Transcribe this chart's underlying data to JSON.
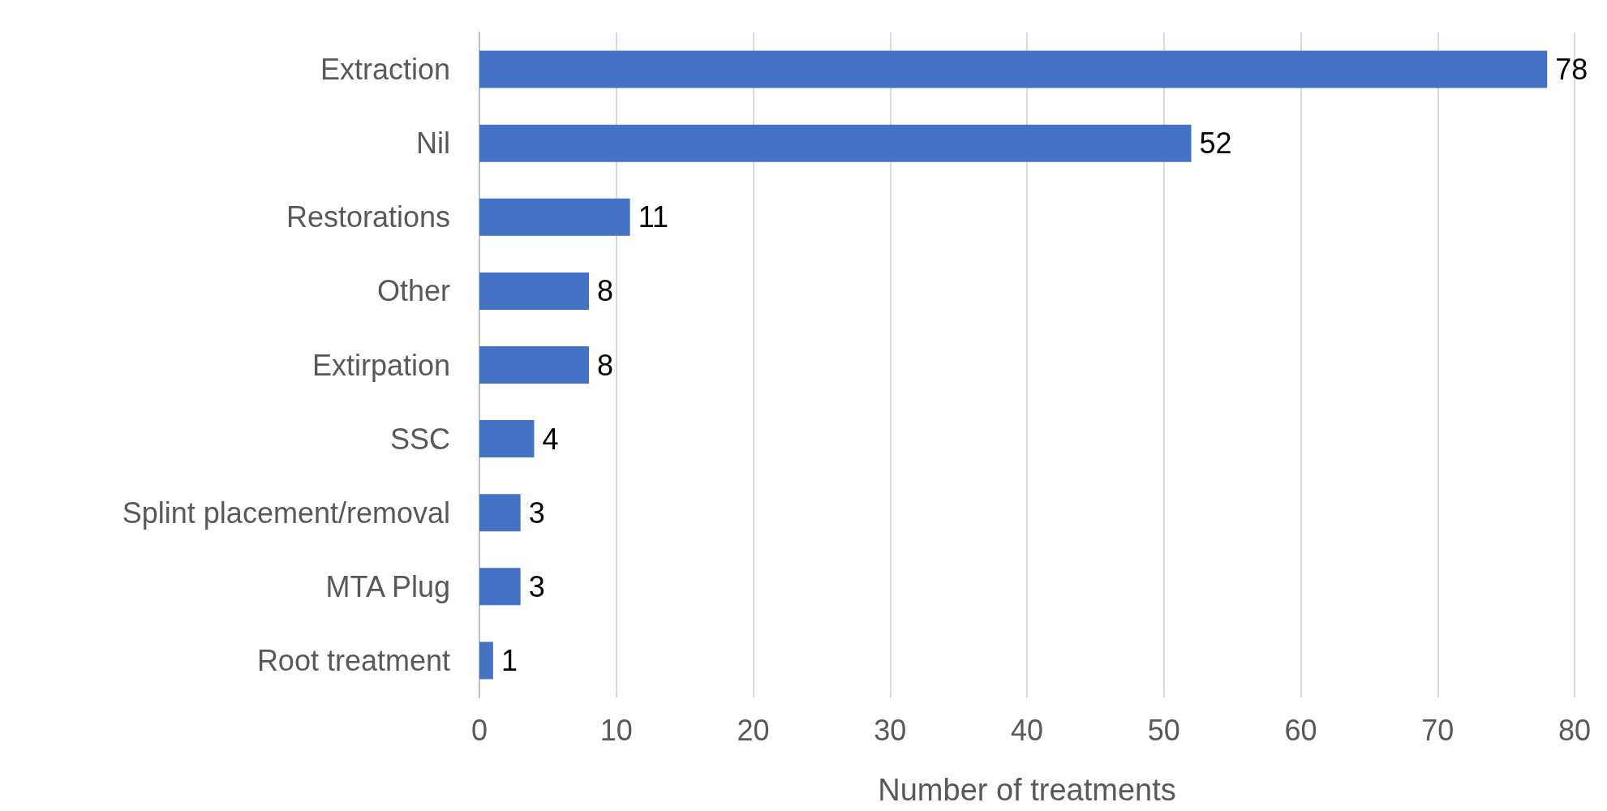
{
  "chart_data": {
    "type": "bar",
    "orientation": "horizontal",
    "xlabel": "Number of treatments",
    "categories": [
      "Extraction",
      "Nil",
      "Restorations",
      "Other",
      "Extirpation",
      "SSC",
      "Splint placement/removal",
      "MTA Plug",
      "Root treatment"
    ],
    "values": [
      78,
      52,
      11,
      8,
      8,
      4,
      3,
      3,
      1
    ],
    "color": "#4472c4",
    "data_labels": true,
    "xlim": [
      0,
      80
    ],
    "xticks": [
      0,
      10,
      20,
      30,
      40,
      50,
      60,
      70,
      80
    ],
    "grid": "x"
  }
}
